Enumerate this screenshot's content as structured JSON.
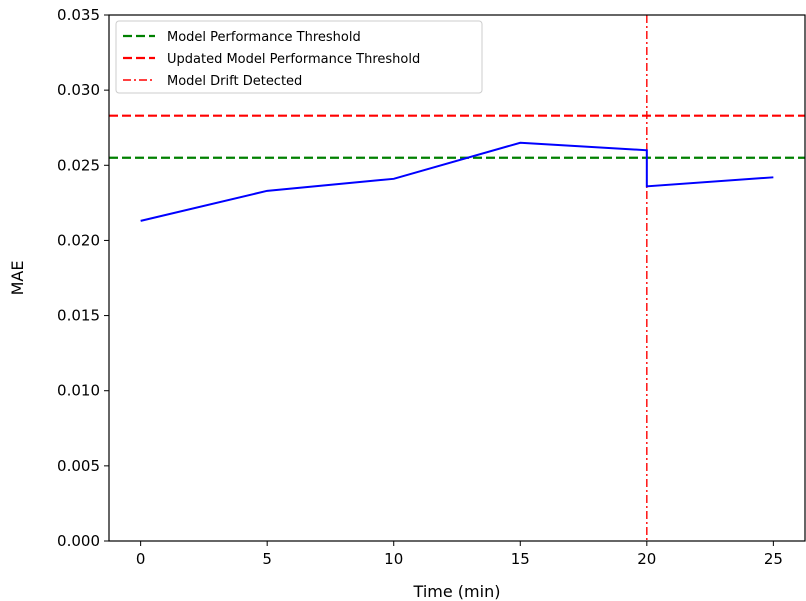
{
  "chart_data": {
    "type": "line",
    "xlabel": "Time (min)",
    "ylabel": "MAE",
    "xlim": [
      -1.25,
      26.25
    ],
    "ylim": [
      0.0,
      0.035
    ],
    "x_ticks": [
      0,
      5,
      10,
      15,
      20,
      25
    ],
    "y_ticks": [
      0.0,
      0.005,
      0.01,
      0.015,
      0.02,
      0.025,
      0.03,
      0.035
    ],
    "y_tick_labels": [
      "0.000",
      "0.005",
      "0.010",
      "0.015",
      "0.020",
      "0.025",
      "0.030",
      "0.035"
    ],
    "grid": false,
    "legend_position": "top-left",
    "series": [
      {
        "color": "#0000ff",
        "style": "solid",
        "points": [
          [
            0,
            0.0213
          ],
          [
            5,
            0.0233
          ],
          [
            10,
            0.0241
          ],
          [
            15,
            0.0265
          ],
          [
            20,
            0.026
          ],
          [
            20,
            0.0236
          ],
          [
            25,
            0.0242
          ]
        ]
      }
    ],
    "hlines": [
      {
        "name": "Model Performance Threshold",
        "y": 0.0255,
        "color": "#008000",
        "style": "dashed"
      },
      {
        "name": "Updated Model Performance Threshold",
        "y": 0.0283,
        "color": "#ff0000",
        "style": "dashed"
      }
    ],
    "vlines": [
      {
        "name": "Model Drift Detected",
        "x": 20,
        "color": "#ff0000",
        "style": "dashdot"
      }
    ],
    "legend": [
      {
        "label": "Model Performance Threshold",
        "color": "#008000",
        "style": "dashed"
      },
      {
        "label": "Updated Model Performance Threshold",
        "color": "#ff0000",
        "style": "dashed"
      },
      {
        "label": "Model Drift Detected",
        "color": "#ff0000",
        "style": "dashdot"
      }
    ]
  }
}
